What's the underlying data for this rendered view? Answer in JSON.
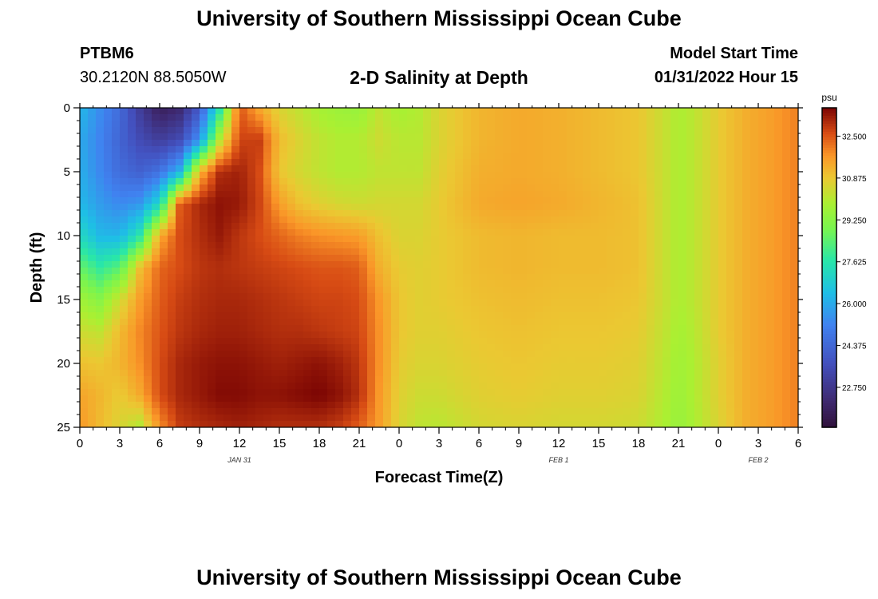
{
  "header": {
    "title": "University of Southern Mississippi Ocean Cube",
    "station": "PTBM6",
    "coords": "30.2120N  88.5050W",
    "plot_title": "2-D Salinity at Depth",
    "model_label": "Model Start Time",
    "model_time": "01/31/2022 Hour 15"
  },
  "footer": {
    "title": "University of Southern Mississippi Ocean Cube"
  },
  "chart_data": {
    "type": "heatmap",
    "title": "2-D Salinity at Depth",
    "xlabel": "Forecast Time(Z)",
    "ylabel": "Depth (ft)",
    "x_range_hours": [
      0,
      54
    ],
    "y_range": [
      0,
      25
    ],
    "y_inverted": true,
    "x_tick_labels": [
      "0",
      "3",
      "6",
      "9",
      "12",
      "15",
      "18",
      "21",
      "0",
      "3",
      "6",
      "9",
      "12",
      "15",
      "18",
      "21",
      "0",
      "3",
      "6"
    ],
    "y_tick_labels": [
      "0",
      "5",
      "10",
      "15",
      "20",
      "25"
    ],
    "date_labels": [
      {
        "hour": 12,
        "label": "JAN 31"
      },
      {
        "hour": 36,
        "label": "FEB 1"
      },
      {
        "hour": 51,
        "label": "FEB 2"
      }
    ],
    "colorbar": {
      "unit": "psu",
      "min": 21.2,
      "max": 33.6,
      "tick_labels": [
        "32.500",
        "30.875",
        "29.250",
        "27.625",
        "26.000",
        "24.375",
        "22.750"
      ],
      "tick_values": [
        32.5,
        30.875,
        29.25,
        27.625,
        26.0,
        24.375,
        22.75
      ]
    },
    "time_hours": [
      0,
      1.5,
      3,
      4.5,
      6,
      7.5,
      9,
      10.5,
      12,
      13.5,
      15,
      16.5,
      18,
      19.5,
      21,
      22.5,
      24,
      25.5,
      27,
      30,
      33,
      36,
      39,
      42,
      44,
      45,
      46,
      48,
      50,
      52,
      54
    ],
    "depths_ft": [
      0,
      2.5,
      5,
      7.5,
      10,
      12.5,
      15,
      17.5,
      20,
      22.5,
      25
    ],
    "salinity_psu": [
      [
        26.3,
        25.4,
        24.5,
        23.0,
        21.8,
        22.2,
        24.0,
        27.5,
        32.5,
        31.4,
        30.6,
        30.2,
        29.8,
        29.6,
        29.5,
        30.2,
        29.8,
        30.0,
        30.6,
        31.2,
        31.4,
        31.3,
        31.1,
        30.9,
        30.3,
        29.9,
        30.1,
        30.8,
        31.3,
        31.6,
        32.0
      ],
      [
        26.0,
        25.2,
        24.3,
        23.5,
        23.0,
        23.5,
        25.5,
        30.0,
        32.7,
        32.8,
        31.1,
        30.6,
        30.2,
        30.0,
        30.0,
        30.4,
        30.1,
        30.1,
        30.6,
        31.2,
        31.4,
        31.3,
        31.1,
        30.9,
        30.3,
        29.9,
        30.1,
        30.8,
        31.3,
        31.6,
        32.0
      ],
      [
        26.1,
        25.3,
        24.5,
        24.2,
        24.7,
        26.2,
        31.2,
        33.0,
        33.2,
        32.6,
        30.9,
        30.5,
        30.2,
        30.0,
        30.0,
        30.2,
        30.2,
        30.2,
        30.7,
        31.3,
        31.4,
        31.3,
        31.1,
        30.9,
        30.3,
        29.9,
        30.1,
        30.8,
        31.3,
        31.6,
        32.0
      ],
      [
        26.3,
        25.7,
        25.3,
        25.6,
        27.1,
        32.4,
        33.1,
        33.4,
        33.3,
        32.7,
        31.6,
        31.0,
        30.7,
        30.5,
        30.4,
        30.5,
        30.5,
        30.5,
        30.8,
        31.4,
        31.5,
        31.4,
        31.2,
        31.0,
        30.3,
        29.9,
        30.1,
        30.8,
        31.3,
        31.6,
        32.0
      ],
      [
        27.2,
        26.3,
        26.2,
        27.6,
        31.4,
        32.6,
        33.0,
        33.3,
        32.9,
        32.6,
        32.3,
        32.0,
        31.8,
        31.7,
        31.6,
        31.0,
        30.6,
        30.6,
        30.8,
        31.1,
        31.2,
        31.1,
        31.1,
        31.0,
        30.3,
        29.9,
        30.1,
        30.8,
        31.3,
        31.6,
        32.0
      ],
      [
        28.6,
        27.8,
        28.4,
        31.0,
        32.3,
        32.6,
        32.9,
        33.0,
        32.9,
        32.8,
        32.7,
        32.6,
        32.5,
        32.5,
        32.4,
        31.3,
        30.8,
        30.7,
        30.8,
        31.1,
        31.2,
        31.1,
        31.1,
        31.0,
        30.3,
        29.9,
        30.1,
        30.8,
        31.3,
        31.6,
        32.0
      ],
      [
        29.7,
        29.2,
        30.4,
        31.6,
        32.4,
        32.8,
        33.0,
        33.1,
        33.1,
        33.0,
        32.9,
        32.8,
        32.7,
        32.7,
        32.6,
        31.7,
        30.9,
        30.7,
        30.8,
        31.0,
        31.1,
        31.0,
        31.0,
        30.9,
        30.3,
        29.9,
        30.1,
        30.8,
        31.3,
        31.6,
        32.0
      ],
      [
        30.4,
        30.2,
        31.1,
        31.9,
        32.5,
        32.9,
        33.1,
        33.2,
        33.2,
        33.1,
        33.0,
        33.0,
        32.9,
        32.8,
        32.7,
        31.8,
        30.9,
        30.7,
        30.7,
        30.9,
        31.0,
        30.9,
        30.9,
        30.8,
        30.2,
        29.8,
        30.0,
        30.8,
        31.3,
        31.6,
        32.0
      ],
      [
        31.0,
        30.9,
        31.2,
        31.8,
        32.6,
        33.1,
        33.3,
        33.4,
        33.4,
        33.3,
        33.2,
        33.3,
        33.4,
        33.2,
        32.9,
        31.8,
        30.8,
        30.6,
        30.6,
        30.8,
        30.9,
        30.8,
        30.8,
        30.7,
        30.1,
        29.7,
        29.9,
        30.7,
        31.3,
        31.6,
        32.0
      ],
      [
        31.5,
        31.2,
        30.8,
        31.4,
        32.6,
        33.1,
        33.3,
        33.5,
        33.5,
        33.4,
        33.4,
        33.5,
        33.6,
        33.4,
        33.0,
        31.7,
        30.7,
        30.4,
        30.4,
        30.7,
        30.8,
        30.7,
        30.7,
        30.6,
        30.0,
        29.6,
        29.9,
        30.7,
        31.3,
        31.6,
        32.0
      ],
      [
        31.7,
        31.1,
        30.6,
        30.0,
        31.8,
        32.8,
        33.0,
        33.1,
        33.2,
        33.1,
        33.0,
        33.0,
        33.0,
        32.8,
        32.4,
        31.6,
        30.6,
        30.2,
        30.1,
        30.5,
        30.6,
        30.5,
        30.5,
        30.4,
        29.9,
        29.5,
        29.8,
        30.6,
        31.3,
        31.6,
        32.0
      ]
    ]
  }
}
